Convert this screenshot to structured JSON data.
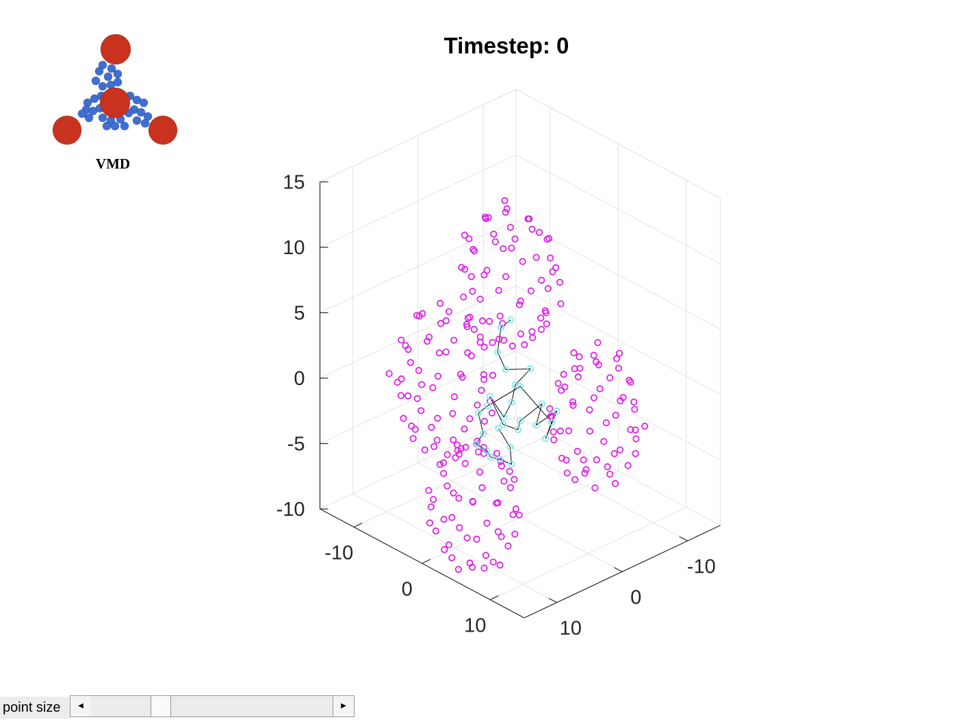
{
  "chart_data": {
    "type": "scatter",
    "title": "Timestep: 0",
    "view": "3d",
    "grid": true,
    "xlim": [
      -15,
      15
    ],
    "ylim": [
      -15,
      15
    ],
    "zlim": [
      -10,
      15
    ],
    "x_ticks": [
      {
        "value": -10,
        "label": "-10"
      },
      {
        "value": 0,
        "label": "0"
      },
      {
        "value": 10,
        "label": "10"
      }
    ],
    "y_ticks": [
      {
        "value": -10,
        "label": "-10"
      },
      {
        "value": 0,
        "label": "0"
      },
      {
        "value": 10,
        "label": "10"
      }
    ],
    "z_ticks": [
      {
        "value": -10,
        "label": "-10"
      },
      {
        "value": -5,
        "label": "-5"
      },
      {
        "value": 0,
        "label": "0"
      },
      {
        "value": 5,
        "label": "5"
      },
      {
        "value": 10,
        "label": "10"
      },
      {
        "value": 15,
        "label": "15"
      }
    ],
    "series": [
      {
        "marker": "circle",
        "color": "#e020e8",
        "clusters": [
          {
            "center": [
              -1.2,
              0.3,
              8.0
            ],
            "radius": 5.5,
            "count": 64
          },
          {
            "center": [
              -7.0,
              4.5,
              -0.5
            ],
            "radius": 5.5,
            "count": 62
          },
          {
            "center": [
              -0.5,
              6.5,
              -7.5
            ],
            "radius": 5.0,
            "count": 56
          },
          {
            "center": [
              7.5,
              -3.5,
              -1.0
            ],
            "radius": 5.2,
            "count": 60
          }
        ]
      },
      {
        "marker": "circle",
        "color": "#80e8f0",
        "connected": true,
        "line_color": "#000000",
        "points": [
          [
            -0.8,
            0.6,
            5.0
          ],
          [
            -3.2,
            -0.4,
            3.5
          ],
          [
            -1.2,
            2.2,
            2.8
          ],
          [
            -0.4,
            1.8,
            1.6
          ],
          [
            1.6,
            0.1,
            1.8
          ],
          [
            1.0,
            1.8,
            0.8
          ],
          [
            0.2,
            1.5,
            -0.8
          ],
          [
            0.5,
            3.0,
            -1.5
          ],
          [
            -1.0,
            3.6,
            -0.2
          ],
          [
            -0.2,
            2.4,
            -2.4
          ],
          [
            1.2,
            1.6,
            -2.6
          ],
          [
            2.0,
            2.1,
            -1.6
          ],
          [
            3.3,
            0.1,
            -0.4
          ],
          [
            3.5,
            1.2,
            -1.7
          ],
          [
            5.0,
            -0.4,
            -0.6
          ],
          [
            4.8,
            1.1,
            -2.4
          ],
          [
            5.5,
            0.9,
            -1.0
          ],
          [
            0.6,
            0.6,
            0.3
          ],
          [
            -1.3,
            3.6,
            -1.0
          ],
          [
            -2.0,
            4.3,
            -1.6
          ],
          [
            -1.0,
            4.6,
            -2.8
          ],
          [
            -1.5,
            5.2,
            -3.6
          ],
          [
            -0.8,
            4.3,
            -4.1
          ],
          [
            0.1,
            4.6,
            -4.3
          ],
          [
            1.2,
            4.4,
            -4.2
          ],
          [
            2.0,
            3.4,
            -4.6
          ],
          [
            1.5,
            3.1,
            -3.5
          ],
          [
            0.3,
            3.6,
            -2.3
          ]
        ]
      }
    ]
  },
  "logo": {
    "caption": "VMD"
  },
  "controls": {
    "point_size_label": "point size",
    "point_size_value": 0.27
  }
}
